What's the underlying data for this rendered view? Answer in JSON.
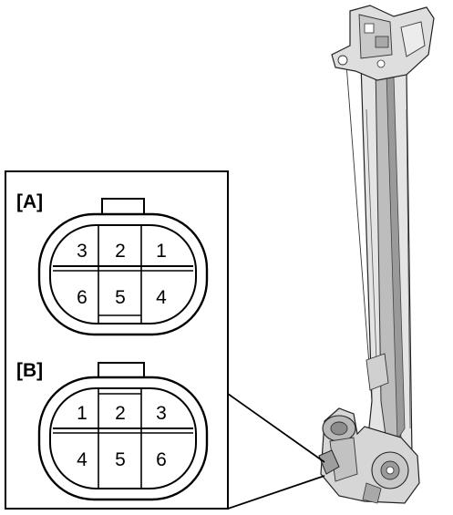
{
  "connector_a": {
    "label": "[A]",
    "pins_top": [
      "3",
      "2",
      "1"
    ],
    "pins_bottom": [
      "6",
      "5",
      "4"
    ]
  },
  "connector_b": {
    "label": "[B]",
    "pins_top": [
      "1",
      "2",
      "3"
    ],
    "pins_bottom": [
      "4",
      "5",
      "6"
    ]
  },
  "colors": {
    "line": "#000000",
    "background": "#ffffff",
    "metal_light": "#e3e3e3",
    "metal_mid": "#c4c4c4",
    "metal_dark": "#8d8d8d"
  }
}
